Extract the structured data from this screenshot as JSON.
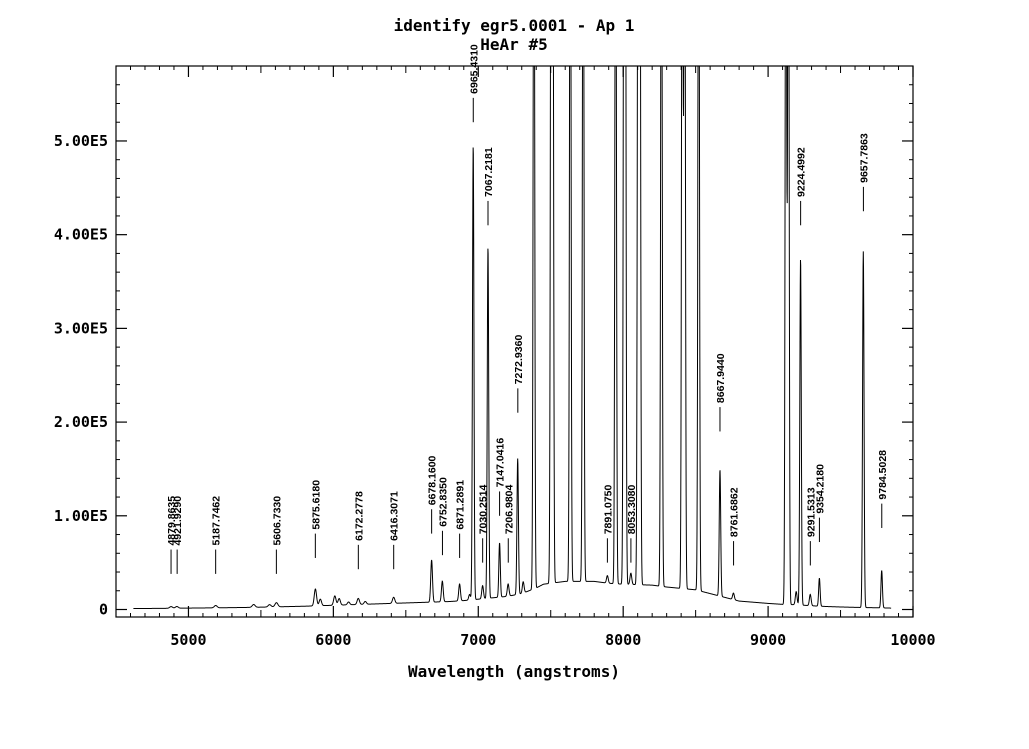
{
  "chart_data": {
    "type": "line",
    "title": "identify egr5.0001 - Ap 1",
    "subtitle": "HeAr #5",
    "xlabel": "Wavelength (angstroms)",
    "ylabel": "",
    "xlim": [
      4500,
      10000
    ],
    "ylim": [
      -8000,
      580000
    ],
    "x_ticks": [
      5000,
      6000,
      7000,
      8000,
      9000,
      10000
    ],
    "x_tick_labels": [
      "5000",
      "6000",
      "7000",
      "8000",
      "9000",
      "10000"
    ],
    "y_ticks": [
      0,
      100000,
      200000,
      300000,
      400000,
      500000
    ],
    "y_tick_labels": [
      "0",
      "1.00E5",
      "2.00E5",
      "3.00E5",
      "4.00E5",
      "5.00E5"
    ],
    "grid": false,
    "legend": "none",
    "color": "#000000",
    "series": [
      {
        "x": [
          4620,
          4800,
          5000,
          5200,
          5400,
          5600,
          5800,
          6000,
          6200,
          6400,
          6600,
          6800,
          6900,
          7000,
          7200,
          7300,
          7350,
          7400,
          7450,
          7600,
          7800,
          7900,
          8000,
          8200,
          8300,
          8500,
          8600,
          8700,
          8800,
          9000,
          9100,
          9200,
          9300,
          9400,
          9500,
          9600,
          9700,
          9800,
          9850
        ],
        "y": [
          1000,
          1200,
          1500,
          1800,
          2200,
          2800,
          3500,
          4500,
          5500,
          6500,
          7500,
          8500,
          9500,
          11000,
          14000,
          17000,
          20000,
          23000,
          27000,
          30000,
          30000,
          28000,
          27000,
          26000,
          24000,
          21000,
          17000,
          13000,
          9000,
          6500,
          5500,
          5000,
          4000,
          3200,
          2700,
          2300,
          2000,
          1700,
          1500
        ]
      }
    ],
    "peaks": [
      {
        "x": 4880,
        "h": 1800,
        "w": 10
      },
      {
        "x": 4920,
        "h": 1800,
        "w": 10
      },
      {
        "x": 5188,
        "h": 2500,
        "w": 10
      },
      {
        "x": 5450,
        "h": 3000,
        "w": 10
      },
      {
        "x": 5560,
        "h": 2500,
        "w": 10
      },
      {
        "x": 5607,
        "h": 4500,
        "w": 10
      },
      {
        "x": 5876,
        "h": 18000,
        "w": 8
      },
      {
        "x": 5910,
        "h": 7000,
        "w": 8
      },
      {
        "x": 6010,
        "h": 10000,
        "w": 8
      },
      {
        "x": 6040,
        "h": 7000,
        "w": 8
      },
      {
        "x": 6105,
        "h": 3000,
        "w": 8
      },
      {
        "x": 6172,
        "h": 6500,
        "w": 8
      },
      {
        "x": 6220,
        "h": 3000,
        "w": 8
      },
      {
        "x": 6416,
        "h": 6500,
        "w": 8
      },
      {
        "x": 6678,
        "h": 45000,
        "w": 6
      },
      {
        "x": 6752,
        "h": 22000,
        "w": 6
      },
      {
        "x": 6871,
        "h": 18000,
        "w": 6
      },
      {
        "x": 6940,
        "h": 6000,
        "w": 6
      },
      {
        "x": 6965,
        "h": 485000,
        "w": 5
      },
      {
        "x": 7030,
        "h": 14000,
        "w": 6
      },
      {
        "x": 7067,
        "h": 375000,
        "w": 5
      },
      {
        "x": 7147,
        "h": 58000,
        "w": 5
      },
      {
        "x": 7206,
        "h": 13000,
        "w": 6
      },
      {
        "x": 7272,
        "h": 145000,
        "w": 5
      },
      {
        "x": 7310,
        "h": 12000,
        "w": 6
      },
      {
        "x": 7384,
        "h": 900000,
        "w": 5
      },
      {
        "x": 7503,
        "h": 900000,
        "w": 5
      },
      {
        "x": 7514,
        "h": 900000,
        "w": 5
      },
      {
        "x": 7635,
        "h": 900000,
        "w": 5
      },
      {
        "x": 7724,
        "h": 900000,
        "w": 5
      },
      {
        "x": 7891,
        "h": 8000,
        "w": 6
      },
      {
        "x": 7948,
        "h": 900000,
        "w": 5
      },
      {
        "x": 8006,
        "h": 900000,
        "w": 5
      },
      {
        "x": 8014,
        "h": 900000,
        "w": 5
      },
      {
        "x": 8053,
        "h": 12000,
        "w": 6
      },
      {
        "x": 8103,
        "h": 900000,
        "w": 5
      },
      {
        "x": 8115,
        "h": 900000,
        "w": 5
      },
      {
        "x": 8264,
        "h": 900000,
        "w": 5
      },
      {
        "x": 8408,
        "h": 900000,
        "w": 5
      },
      {
        "x": 8424,
        "h": 900000,
        "w": 5
      },
      {
        "x": 8521,
        "h": 900000,
        "w": 5
      },
      {
        "x": 8668,
        "h": 135000,
        "w": 5
      },
      {
        "x": 8761,
        "h": 7000,
        "w": 6
      },
      {
        "x": 9123,
        "h": 900000,
        "w": 5
      },
      {
        "x": 9140,
        "h": 900000,
        "w": 5
      },
      {
        "x": 9194,
        "h": 14000,
        "w": 6
      },
      {
        "x": 9224,
        "h": 370000,
        "w": 5
      },
      {
        "x": 9291,
        "h": 12000,
        "w": 6
      },
      {
        "x": 9354,
        "h": 30000,
        "w": 5
      },
      {
        "x": 9657,
        "h": 380000,
        "w": 5
      },
      {
        "x": 9784,
        "h": 40000,
        "w": 5
      }
    ],
    "line_ids": [
      {
        "x": 4879.8635,
        "label": "4879.8635",
        "y": 38000,
        "len": 26000
      },
      {
        "x": 4921.929,
        "label": "4921.9290",
        "y": 38000,
        "len": 26000
      },
      {
        "x": 5187.7462,
        "label": "5187.7462",
        "y": 38000,
        "len": 26000
      },
      {
        "x": 5606.733,
        "label": "5606.7330",
        "y": 38000,
        "len": 26000
      },
      {
        "x": 5875.618,
        "label": "5875.6180",
        "y": 55000,
        "len": 26000
      },
      {
        "x": 6172.2778,
        "label": "6172.2778",
        "y": 43000,
        "len": 26000
      },
      {
        "x": 6416.3071,
        "label": "6416.3071",
        "y": 43000,
        "len": 26000
      },
      {
        "x": 6678.16,
        "label": "6678.1600",
        "y": 81000,
        "len": 26000
      },
      {
        "x": 6752.835,
        "label": "6752.8350",
        "y": 58000,
        "len": 26000
      },
      {
        "x": 6871.2891,
        "label": "6871.2891",
        "y": 55000,
        "len": 26000
      },
      {
        "x": 6965.431,
        "label": "6965.4310",
        "y": 520000,
        "len": 26000
      },
      {
        "x": 7030.2514,
        "label": "7030.2514",
        "y": 50000,
        "len": 26000
      },
      {
        "x": 7067.2181,
        "label": "7067.2181",
        "y": 410000,
        "len": 26000
      },
      {
        "x": 7147.0416,
        "label": "7147.0416",
        "y": 100000,
        "len": 26000
      },
      {
        "x": 7206.9804,
        "label": "7206.9804",
        "y": 50000,
        "len": 26000
      },
      {
        "x": 7272.936,
        "label": "7272.9360",
        "y": 210000,
        "len": 26000
      },
      {
        "x": 7891.075,
        "label": "7891.0750",
        "y": 50000,
        "len": 26000
      },
      {
        "x": 8053.308,
        "label": "8053.3080",
        "y": 50000,
        "len": 26000
      },
      {
        "x": 8667.944,
        "label": "8667.9440",
        "y": 190000,
        "len": 26000
      },
      {
        "x": 8761.6862,
        "label": "8761.6862",
        "y": 47000,
        "len": 26000
      },
      {
        "x": 9224.4992,
        "label": "9224.4992",
        "y": 410000,
        "len": 26000
      },
      {
        "x": 9291.5313,
        "label": "9291.5313",
        "y": 47000,
        "len": 26000
      },
      {
        "x": 9354.218,
        "label": "9354.2180",
        "y": 72000,
        "len": 26000
      },
      {
        "x": 9657.7863,
        "label": "9657.7863",
        "y": 425000,
        "len": 26000
      },
      {
        "x": 9784.5028,
        "label": "9784.5028",
        "y": 87000,
        "len": 26000
      }
    ]
  }
}
